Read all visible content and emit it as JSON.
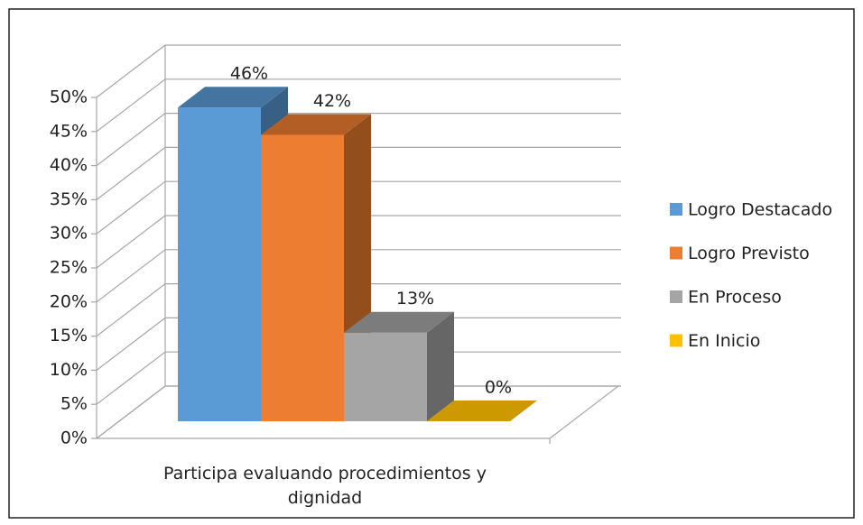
{
  "chart_data": {
    "type": "bar",
    "categories": [
      "Participa evaluando procedimientos y dignidad"
    ],
    "series": [
      {
        "name": "Logro Destacado",
        "color": "#5b9bd5",
        "values": [
          46
        ],
        "value_labels": [
          "46%"
        ]
      },
      {
        "name": "Logro Previsto",
        "color": "#ed7d31",
        "values": [
          42
        ],
        "value_labels": [
          "42%"
        ]
      },
      {
        "name": "En Proceso",
        "color": "#a5a5a5",
        "values": [
          13
        ],
        "value_labels": [
          "13%"
        ]
      },
      {
        "name": "En Inicio",
        "color": "#ffc000",
        "values": [
          0
        ],
        "value_labels": [
          "0%"
        ]
      }
    ],
    "ylim": [
      0,
      50
    ],
    "yticks": [
      {
        "value": 0,
        "label": "0%"
      },
      {
        "value": 5,
        "label": "5%"
      },
      {
        "value": 10,
        "label": "10%"
      },
      {
        "value": 15,
        "label": "15%"
      },
      {
        "value": 20,
        "label": "20%"
      },
      {
        "value": 25,
        "label": "25%"
      },
      {
        "value": 30,
        "label": "30%"
      },
      {
        "value": 35,
        "label": "35%"
      },
      {
        "value": 40,
        "label": "40%"
      },
      {
        "value": 45,
        "label": "45%"
      },
      {
        "value": 50,
        "label": "50%"
      }
    ],
    "grid": true,
    "legend": "right"
  }
}
